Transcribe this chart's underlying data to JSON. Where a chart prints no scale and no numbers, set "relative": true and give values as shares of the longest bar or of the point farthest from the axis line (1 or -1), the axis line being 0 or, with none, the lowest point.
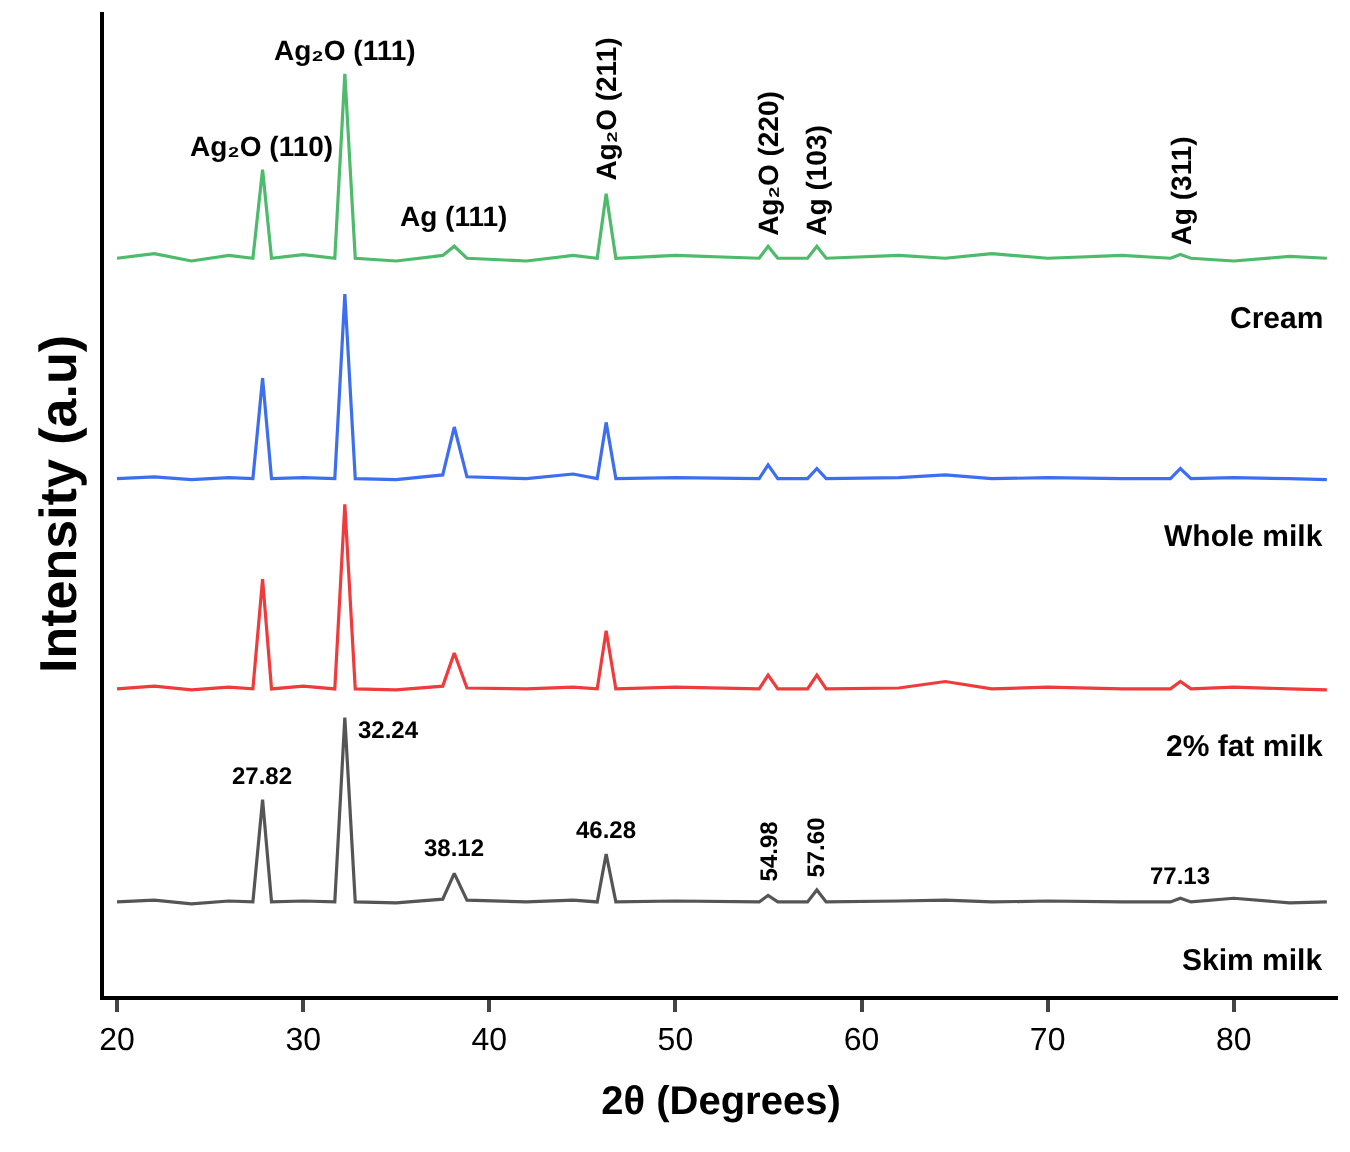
{
  "chart_data": {
    "type": "line",
    "relative": true,
    "xlabel": "2θ (Degrees)",
    "ylabel": "Intensity (a.u)",
    "xlim": [
      19.3,
      85.6
    ],
    "xticks": [
      20,
      30,
      40,
      50,
      60,
      70,
      80
    ],
    "legend": false,
    "marker": "none",
    "line_style": "solid",
    "x": [
      20,
      22,
      24,
      26,
      27.3,
      27.82,
      28.3,
      30,
      31.7,
      32.24,
      32.8,
      35,
      37.5,
      38.12,
      38.8,
      42,
      44.5,
      45.8,
      46.28,
      46.8,
      50,
      54.5,
      54.98,
      55.5,
      57.1,
      57.6,
      58.1,
      62,
      64.5,
      67,
      70,
      74,
      76.6,
      77.13,
      77.7,
      80,
      83,
      85
    ],
    "series": [
      {
        "name": "Cream",
        "color": "#4dba6c",
        "values": [
          0.8,
          0.805,
          0.797,
          0.803,
          0.8,
          0.896,
          0.8,
          0.804,
          0.8,
          1.0,
          0.8,
          0.797,
          0.803,
          0.813,
          0.8,
          0.797,
          0.803,
          0.8,
          0.87,
          0.8,
          0.803,
          0.8,
          0.813,
          0.8,
          0.8,
          0.813,
          0.8,
          0.803,
          0.8,
          0.805,
          0.8,
          0.803,
          0.8,
          0.804,
          0.8,
          0.797,
          0.802,
          0.8
        ]
      },
      {
        "name": "Whole milk",
        "color": "#3e6ef0",
        "values": [
          0.561,
          0.563,
          0.56,
          0.562,
          0.561,
          0.67,
          0.561,
          0.562,
          0.561,
          0.761,
          0.561,
          0.56,
          0.565,
          0.617,
          0.563,
          0.561,
          0.566,
          0.561,
          0.622,
          0.561,
          0.562,
          0.561,
          0.576,
          0.561,
          0.561,
          0.572,
          0.561,
          0.562,
          0.565,
          0.561,
          0.562,
          0.561,
          0.561,
          0.572,
          0.561,
          0.562,
          0.561,
          0.56
        ]
      },
      {
        "name": "2% fat milk",
        "color": "#ef3b3b",
        "values": [
          0.333,
          0.336,
          0.332,
          0.335,
          0.333,
          0.452,
          0.333,
          0.336,
          0.333,
          0.533,
          0.333,
          0.332,
          0.336,
          0.372,
          0.334,
          0.333,
          0.335,
          0.333,
          0.396,
          0.333,
          0.335,
          0.333,
          0.348,
          0.333,
          0.333,
          0.348,
          0.333,
          0.334,
          0.341,
          0.333,
          0.335,
          0.333,
          0.333,
          0.341,
          0.333,
          0.335,
          0.333,
          0.332
        ]
      },
      {
        "name": "Skim milk",
        "color": "#555555",
        "values": [
          0.102,
          0.104,
          0.1,
          0.103,
          0.102,
          0.213,
          0.102,
          0.103,
          0.102,
          0.302,
          0.102,
          0.101,
          0.105,
          0.133,
          0.104,
          0.102,
          0.104,
          0.102,
          0.154,
          0.102,
          0.103,
          0.102,
          0.109,
          0.102,
          0.102,
          0.115,
          0.102,
          0.103,
          0.104,
          0.102,
          0.103,
          0.102,
          0.102,
          0.106,
          0.102,
          0.106,
          0.101,
          0.102
        ]
      }
    ],
    "annotations": [
      {
        "text": "Ag₂O (110)",
        "x": 27.82,
        "y": 0.9
      },
      {
        "text": "Ag₂O (111)",
        "x": 32.24,
        "y": 1.005
      },
      {
        "text": "Ag (111)",
        "x": 38.12,
        "y": 0.825
      },
      {
        "text": "Ag₂O (211)",
        "x": 46.28,
        "y": 0.88
      },
      {
        "text": "Ag₂O (220)",
        "x": 54.98,
        "y": 0.82
      },
      {
        "text": "Ag (103)",
        "x": 57.6,
        "y": 0.82
      },
      {
        "text": "Ag (311)",
        "x": 77.13,
        "y": 0.81
      },
      {
        "text": "27.82",
        "x": 27.82,
        "y": 0.22
      },
      {
        "text": "32.24",
        "x": 32.24,
        "y": 0.27
      },
      {
        "text": "38.12",
        "x": 38.12,
        "y": 0.14
      },
      {
        "text": "46.28",
        "x": 46.28,
        "y": 0.16
      },
      {
        "text": "54.98",
        "x": 54.98,
        "y": 0.12
      },
      {
        "text": "57.60",
        "x": 57.6,
        "y": 0.125
      },
      {
        "text": "77.13",
        "x": 77.13,
        "y": 0.11
      }
    ]
  }
}
